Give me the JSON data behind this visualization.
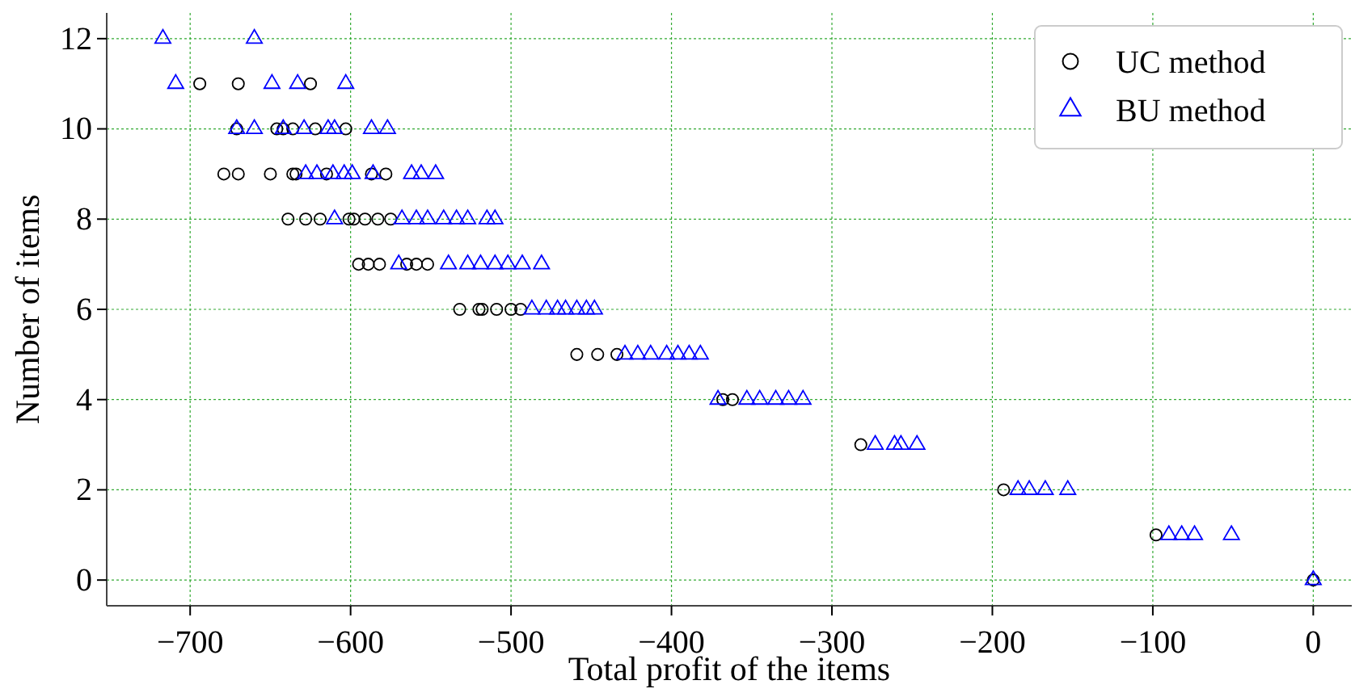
{
  "chart_data": {
    "type": "scatter",
    "xlabel": "Total profit of the items",
    "ylabel": "Number of items",
    "xlim": [
      -752,
      24
    ],
    "ylim": [
      -0.57,
      12.57
    ],
    "xticks": [
      -700,
      -600,
      -500,
      -400,
      -300,
      -200,
      -100,
      0
    ],
    "yticks": [
      0,
      2,
      4,
      6,
      8,
      10,
      12
    ],
    "grid": true,
    "legend": "top right",
    "series": [
      {
        "name": "UC method",
        "color": "#000000",
        "marker": "circle",
        "x": [
          -694,
          -670,
          -625,
          -671,
          -646,
          -642,
          -636,
          -622,
          -603,
          -679,
          -670,
          -650,
          -636,
          -634,
          -615,
          -587,
          -578,
          -639,
          -628,
          -619,
          -601,
          -598,
          -591,
          -583,
          -575,
          -595,
          -589,
          -582,
          -565,
          -559,
          -552,
          -532,
          -520,
          -518,
          -509,
          -500,
          -494,
          -459,
          -446,
          -434,
          -368,
          -362,
          -282,
          -193,
          -98,
          0
        ],
        "values": [
          11,
          11,
          11,
          10,
          10,
          10,
          10,
          10,
          10,
          9,
          9,
          9,
          9,
          9,
          9,
          9,
          9,
          8,
          8,
          8,
          8,
          8,
          8,
          8,
          8,
          7,
          7,
          7,
          7,
          7,
          7,
          6,
          6,
          6,
          6,
          6,
          6,
          5,
          5,
          5,
          4,
          4,
          3,
          2,
          1,
          0
        ]
      },
      {
        "name": "BU method",
        "color": "#0000ff",
        "marker": "triangle",
        "x": [
          -717,
          -660,
          -709,
          -649,
          -633,
          -603,
          -671,
          -660,
          -642,
          -629,
          -614,
          -610,
          -587,
          -577,
          -628,
          -621,
          -611,
          -604,
          -599,
          -586,
          -562,
          -556,
          -547,
          -610,
          -568,
          -559,
          -552,
          -542,
          -534,
          -527,
          -515,
          -510,
          -570,
          -539,
          -527,
          -519,
          -510,
          -502,
          -493,
          -481,
          -487,
          -478,
          -471,
          -466,
          -459,
          -453,
          -448,
          -429,
          -421,
          -413,
          -403,
          -396,
          -389,
          -382,
          -371,
          -353,
          -345,
          -335,
          -327,
          -318,
          -273,
          -261,
          -257,
          -247,
          -184,
          -177,
          -167,
          -153,
          -90,
          -82,
          -74,
          -51,
          0
        ],
        "values": [
          12,
          12,
          11,
          11,
          11,
          11,
          10,
          10,
          10,
          10,
          10,
          10,
          10,
          10,
          9,
          9,
          9,
          9,
          9,
          9,
          9,
          9,
          9,
          8,
          8,
          8,
          8,
          8,
          8,
          8,
          8,
          8,
          7,
          7,
          7,
          7,
          7,
          7,
          7,
          7,
          6,
          6,
          6,
          6,
          6,
          6,
          6,
          5,
          5,
          5,
          5,
          5,
          5,
          5,
          4,
          4,
          4,
          4,
          4,
          4,
          3,
          3,
          3,
          3,
          2,
          2,
          2,
          2,
          1,
          1,
          1,
          1,
          0
        ]
      }
    ]
  }
}
